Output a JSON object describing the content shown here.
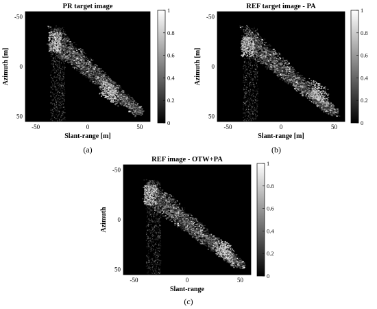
{
  "figure": {
    "panel_labels": [
      "(a)",
      "(b)",
      "(c)"
    ]
  },
  "chart_data": [
    {
      "type": "heatmap",
      "title": "PR target image",
      "xlabel": "Slant-range [m]",
      "ylabel": "Azimuth [m]",
      "xlim": [
        -60,
        60
      ],
      "ylim": [
        -55,
        55
      ],
      "y_reversed": true,
      "xticks": [
        -50,
        0,
        50
      ],
      "yticks": [
        -50,
        0,
        50
      ],
      "colorbar": {
        "range": [
          0,
          1
        ],
        "ticks": [
          0,
          0.2,
          0.4,
          0.6,
          0.8,
          1
        ],
        "tick_labels": [
          "0",
          "0.2",
          "0.4",
          "0.6",
          "0.8",
          "1"
        ],
        "colormap": "gray"
      },
      "target_extent": {
        "description_points": [
          [
            -35,
            -35
          ],
          [
            -25,
            -10
          ],
          [
            50,
            45
          ]
        ],
        "bright_regions": [
          [
            -32,
            -25
          ],
          [
            20,
            25
          ]
        ]
      }
    },
    {
      "type": "heatmap",
      "title": "REF target image - PA",
      "xlabel": "Slant-range [m]",
      "ylabel": "Azimuth [m]",
      "xlim": [
        -60,
        60
      ],
      "ylim": [
        -55,
        55
      ],
      "y_reversed": true,
      "xticks": [
        -50,
        0,
        50
      ],
      "yticks": [
        -50,
        0,
        50
      ],
      "colorbar": {
        "range": [
          0,
          1
        ],
        "ticks": [
          0,
          0.2,
          0.4,
          0.6,
          0.8,
          1
        ],
        "tick_labels": [
          "0",
          "0.2",
          "0.4",
          "0.6",
          "0.8",
          "1"
        ],
        "colormap": "gray"
      },
      "target_extent": {
        "description_points": [
          [
            -35,
            -35
          ],
          [
            -25,
            -10
          ],
          [
            50,
            45
          ]
        ],
        "bright_regions": [
          [
            -32,
            -20
          ],
          [
            35,
            25
          ]
        ]
      }
    },
    {
      "type": "heatmap",
      "title": "REF image - OTW+PA",
      "xlabel": "Slant-range",
      "ylabel": "Azimuth",
      "xlim": [
        -60,
        60
      ],
      "ylim": [
        -55,
        55
      ],
      "y_reversed": true,
      "xticks": [
        -50,
        0,
        50
      ],
      "yticks": [
        -50,
        0,
        50
      ],
      "colorbar": {
        "range": [
          0,
          1
        ],
        "ticks": [
          0,
          0.2,
          0.4,
          0.6,
          0.8,
          1
        ],
        "tick_labels": [
          "0",
          "0.2",
          "0.4",
          "0.6",
          "0.8",
          "1"
        ],
        "colormap": "gray"
      },
      "target_extent": {
        "description_points": [
          [
            -38,
            -35
          ],
          [
            -25,
            -15
          ],
          [
            50,
            45
          ]
        ],
        "bright_regions": [
          [
            -35,
            -25
          ],
          [
            35,
            30
          ]
        ]
      }
    }
  ]
}
